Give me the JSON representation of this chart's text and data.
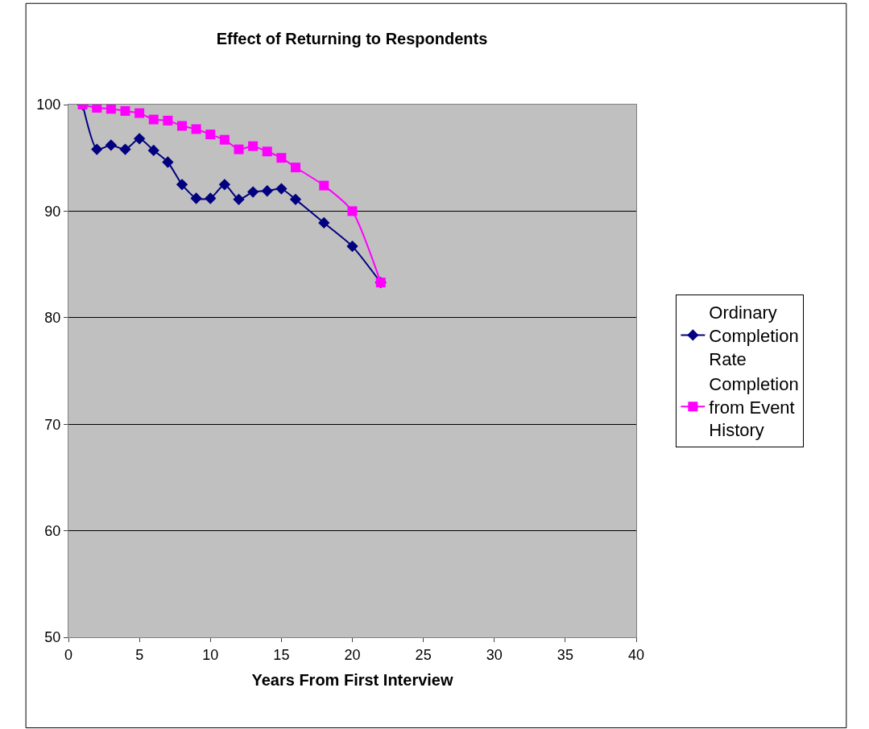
{
  "chart_data": {
    "type": "line",
    "title": "Effect of Returning to Respondents",
    "xlabel": "Years From First Interview",
    "x": [
      1,
      2,
      3,
      4,
      5,
      6,
      7,
      8,
      9,
      10,
      11,
      12,
      13,
      14,
      15,
      16,
      18,
      20,
      22
    ],
    "series": [
      {
        "name": "Ordinary Completion Rate",
        "color": "#000080",
        "marker": "diamond",
        "values": [
          100,
          95.8,
          96.2,
          95.8,
          96.8,
          95.7,
          94.6,
          92.5,
          91.2,
          91.2,
          92.5,
          91.1,
          91.8,
          91.9,
          92.1,
          91.1,
          88.9,
          86.7,
          83.3
        ]
      },
      {
        "name": "Completion from Event History",
        "color": "#ff00ff",
        "marker": "square",
        "values": [
          100,
          99.7,
          99.6,
          99.4,
          99.2,
          98.6,
          98.5,
          98.0,
          97.7,
          97.2,
          96.7,
          95.8,
          96.1,
          95.6,
          95.0,
          94.1,
          92.4,
          90.0,
          83.3
        ]
      }
    ],
    "xlim": [
      0,
      40
    ],
    "xticks": [
      0,
      5,
      10,
      15,
      20,
      25,
      30,
      35,
      40
    ],
    "ylim": [
      50,
      100
    ],
    "yticks": [
      50,
      60,
      70,
      80,
      90,
      100
    ],
    "grid": "y",
    "legend": "right",
    "line_style": "solid"
  }
}
